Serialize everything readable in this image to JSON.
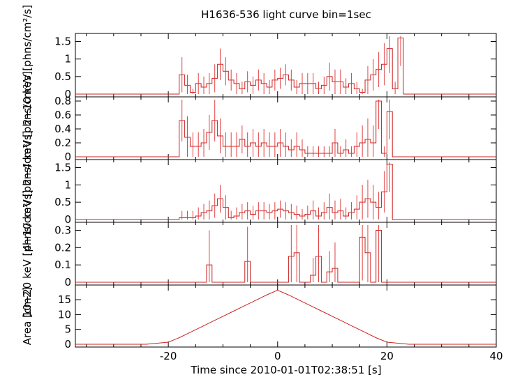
{
  "chart_data": {
    "type": "line",
    "title": "H1636-536 light curve bin=1sec",
    "xlabel": "Time since 2010-01-01T02:38:51 [s]",
    "xlim": [
      -37,
      40
    ],
    "xticks": [
      -20,
      0,
      20,
      40
    ],
    "bin_width": 1,
    "panels": [
      {
        "name": "2-10 keV",
        "ylabel": "2−10 keV  [phns/cm²/s]",
        "ylim": [
          0,
          1.65
        ],
        "yticks": [
          0,
          0.5,
          1,
          1.5
        ],
        "x_start": -18,
        "values": [
          0.55,
          0.25,
          0.05,
          0.3,
          0.2,
          0.3,
          0.45,
          0.85,
          0.65,
          0.4,
          0.3,
          0.15,
          0.35,
          0.25,
          0.4,
          0.3,
          0.2,
          0.4,
          0.45,
          0.55,
          0.4,
          0.2,
          0.3,
          0.3,
          0.3,
          0.15,
          0.25,
          0.5,
          0.35,
          0.35,
          0.2,
          0.3,
          0.15,
          0.05,
          0.4,
          0.55,
          0.7,
          0.85,
          1.3,
          0.15,
          1.6,
          0.0
        ],
        "errors": [
          0.5,
          0.3,
          0.1,
          0.3,
          0.3,
          0.3,
          0.4,
          0.45,
          0.4,
          0.3,
          0.3,
          0.2,
          0.3,
          0.25,
          0.3,
          0.3,
          0.2,
          0.3,
          0.3,
          0.3,
          0.3,
          0.2,
          0.3,
          0.3,
          0.3,
          0.2,
          0.25,
          0.4,
          0.35,
          0.35,
          0.25,
          0.3,
          0.2,
          0.1,
          0.4,
          0.45,
          0.5,
          0.6,
          0.7,
          0.2,
          0.8,
          0.0
        ]
      },
      {
        "name": "2-4 keV",
        "ylabel": "2−4 keV  [phns/cm²/s]",
        "ylim": [
          0,
          0.82
        ],
        "yticks": [
          0,
          0.2,
          0.4,
          0.6,
          0.8
        ],
        "x_start": -18,
        "values": [
          0.52,
          0.28,
          0.15,
          0.15,
          0.2,
          0.35,
          0.52,
          0.3,
          0.15,
          0.15,
          0.15,
          0.25,
          0.15,
          0.2,
          0.15,
          0.2,
          0.15,
          0.15,
          0.2,
          0.15,
          0.1,
          0.15,
          0.1,
          0.05,
          0.05,
          0.05,
          0.05,
          0.05,
          0.2,
          0.05,
          0.1,
          0.05,
          0.15,
          0.2,
          0.25,
          0.2,
          0.8,
          0.05,
          0.65,
          0.0,
          0.0,
          0.0
        ],
        "errors": [
          0.3,
          0.3,
          0.2,
          0.2,
          0.2,
          0.25,
          0.3,
          0.25,
          0.2,
          0.2,
          0.2,
          0.2,
          0.2,
          0.2,
          0.2,
          0.2,
          0.2,
          0.2,
          0.2,
          0.2,
          0.15,
          0.2,
          0.15,
          0.1,
          0.1,
          0.1,
          0.1,
          0.1,
          0.2,
          0.1,
          0.15,
          0.1,
          0.2,
          0.25,
          0.3,
          0.25,
          0.4,
          0.1,
          0.4,
          0.0,
          0.0,
          0.0
        ]
      },
      {
        "name": "4-10 keV",
        "ylabel": "4−10 keV  [phns/cm²/s]",
        "ylim": [
          0,
          1.65
        ],
        "yticks": [
          0,
          0.5,
          1,
          1.5
        ],
        "x_start": -18,
        "values": [
          0.05,
          0.05,
          0.05,
          0.1,
          0.2,
          0.25,
          0.4,
          0.6,
          0.35,
          0.05,
          0.1,
          0.2,
          0.25,
          0.15,
          0.25,
          0.25,
          0.2,
          0.25,
          0.3,
          0.25,
          0.2,
          0.15,
          0.1,
          0.15,
          0.25,
          0.1,
          0.2,
          0.35,
          0.2,
          0.25,
          0.1,
          0.2,
          0.3,
          0.5,
          0.6,
          0.5,
          0.35,
          0.8,
          1.6,
          0.0,
          0.0,
          0.0
        ],
        "errors": [
          0.2,
          0.2,
          0.2,
          0.25,
          0.25,
          0.3,
          0.35,
          0.4,
          0.35,
          0.2,
          0.25,
          0.25,
          0.25,
          0.25,
          0.25,
          0.25,
          0.25,
          0.25,
          0.25,
          0.25,
          0.25,
          0.25,
          0.2,
          0.25,
          0.3,
          0.25,
          0.3,
          0.4,
          0.35,
          0.35,
          0.25,
          0.3,
          0.4,
          0.5,
          0.55,
          0.5,
          0.45,
          0.6,
          0.8,
          0.0,
          0.0,
          0.0
        ]
      },
      {
        "name": "10-20 keV",
        "ylabel": "10−20 keV  [phns/cm²/s]",
        "ylim": [
          0,
          0.33
        ],
        "yticks": [
          0,
          0.1,
          0.2,
          0.3
        ],
        "x_start": -18,
        "values": [
          0,
          0,
          0,
          0,
          0,
          0.1,
          0,
          0,
          0,
          0,
          0,
          0,
          0.12,
          0,
          0,
          0,
          0,
          0,
          0,
          0,
          0.15,
          0.17,
          0,
          0,
          0.04,
          0.15,
          0,
          0.06,
          0.08,
          0,
          0,
          0,
          0,
          0.26,
          0.17,
          0,
          0.3,
          0,
          0,
          0,
          0,
          0
        ],
        "errors": [
          0,
          0,
          0,
          0,
          0,
          0.2,
          0,
          0,
          0,
          0,
          0,
          0,
          0.2,
          0,
          0,
          0,
          0,
          0,
          0,
          0,
          0.18,
          0.2,
          0,
          0,
          0.1,
          0.2,
          0,
          0.12,
          0.15,
          0,
          0,
          0,
          0,
          0.25,
          0.2,
          0,
          0.3,
          0,
          0,
          0,
          0,
          0
        ]
      },
      {
        "name": "Area",
        "ylabel": "Area [cm2]",
        "ylim": [
          0,
          19
        ],
        "yticks": [
          0,
          5,
          10,
          15
        ],
        "curve": {
          "x": [
            -37,
            -24,
            -20,
            -18,
            -16,
            -14,
            -12,
            -10,
            -8,
            -6,
            -4,
            -2,
            0,
            2,
            4,
            6,
            8,
            10,
            12,
            14,
            16,
            18,
            20,
            24,
            40
          ],
          "y": [
            0,
            0,
            0.7,
            2.2,
            4.0,
            5.8,
            7.6,
            9.4,
            11.2,
            13.0,
            14.8,
            16.6,
            18.2,
            16.6,
            14.8,
            13.0,
            11.2,
            9.4,
            7.6,
            5.8,
            4.0,
            2.2,
            0.7,
            0,
            0
          ]
        }
      }
    ]
  }
}
